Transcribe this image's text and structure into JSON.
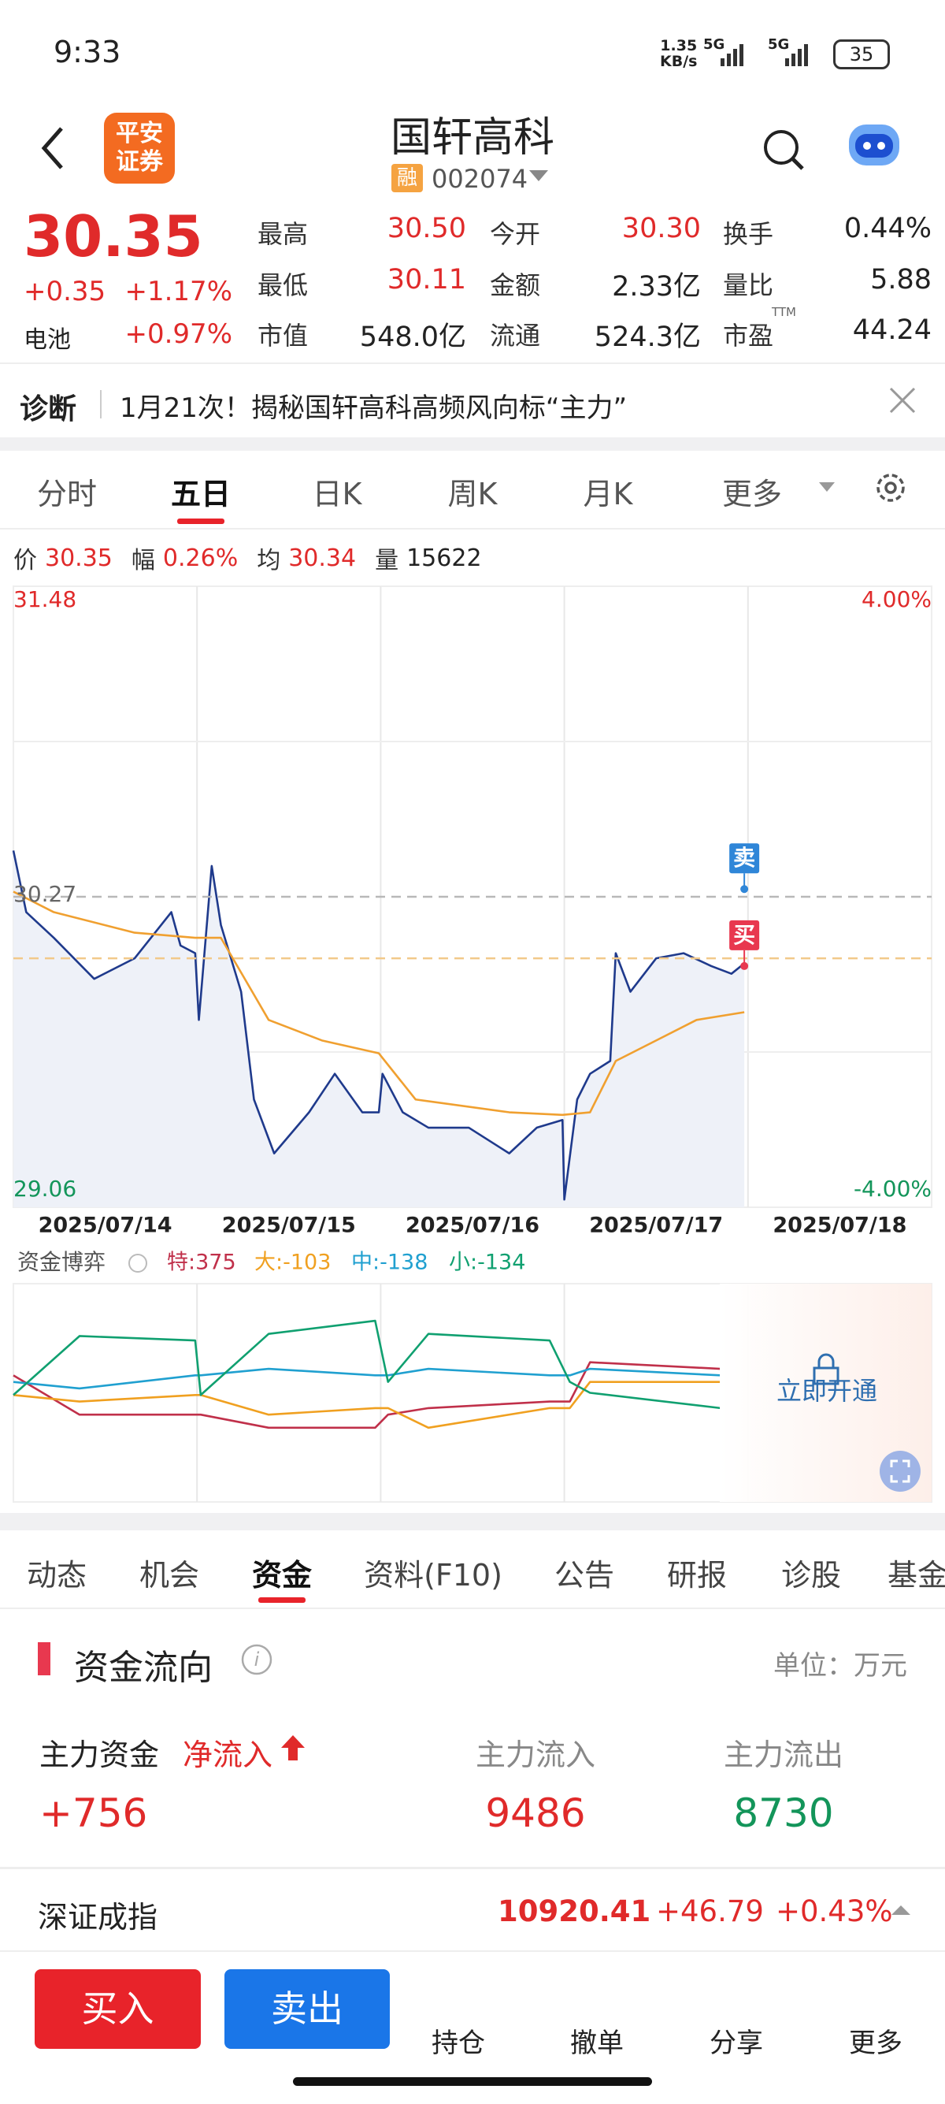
{
  "status_bar": {
    "time": "9:33",
    "speed": "1.35",
    "speed_unit": "KB/s",
    "net1": "5G",
    "net2": "5G",
    "battery": "35"
  },
  "header": {
    "broker_line1": "平安",
    "broker_line2": "证券",
    "title": "国轩高科",
    "tag": "融",
    "code": "002074"
  },
  "quote": {
    "price": "30.35",
    "change": "+0.35",
    "change_pct": "+1.17%",
    "sector": "电池",
    "sector_pct": "+0.97%",
    "fields": [
      {
        "label": "最高",
        "value": "30.50",
        "color": "#e02a2a"
      },
      {
        "label": "今开",
        "value": "30.30",
        "color": "#e02a2a"
      },
      {
        "label": "换手",
        "value": "0.44%",
        "color": "#222"
      },
      {
        "label": "最低",
        "value": "30.11",
        "color": "#e02a2a"
      },
      {
        "label": "金额",
        "value": "2.33亿",
        "color": "#222"
      },
      {
        "label": "量比",
        "value": "5.88",
        "color": "#222"
      },
      {
        "label": "市值",
        "value": "548.0亿",
        "color": "#222"
      },
      {
        "label": "流通",
        "value": "524.3亿",
        "color": "#222"
      },
      {
        "label": "市盈",
        "sup": "TTM",
        "value": "44.24",
        "color": "#222"
      }
    ]
  },
  "notice": {
    "tag": "诊断",
    "text": "1月21次！揭秘国轩高科高频风向标“主力”"
  },
  "chart_tabs": {
    "items": [
      "分时",
      "五日",
      "日K",
      "周K",
      "月K",
      "更多"
    ],
    "active": 1
  },
  "chart_info": [
    {
      "label": "价",
      "value": "30.35"
    },
    {
      "label": "幅",
      "value": "0.26%"
    },
    {
      "label": "均",
      "value": "30.34"
    },
    {
      "label": "量",
      "value": "15622"
    }
  ],
  "chart_data": [
    {
      "type": "line",
      "categories": [
        "2025/07/14",
        "2025/07/15",
        "2025/07/16",
        "2025/07/17",
        "2025/07/18"
      ],
      "xlim": [
        0,
        5
      ],
      "ylim": [
        29.06,
        31.48
      ],
      "yticks": [
        31.48,
        29.06
      ],
      "y2lim": [
        -4,
        4
      ],
      "y2ticks": [
        {
          "value": 4,
          "label": "4.00%"
        },
        {
          "value": -4,
          "label": "-4.00%"
        }
      ],
      "ref_lines": [
        {
          "value": 30.27,
          "label": "30.27",
          "color": "#b8b8b8"
        },
        {
          "value": 30.03,
          "color": "#f2c98a"
        }
      ],
      "series": [
        {
          "color": "#1f3a8c",
          "fill": "#eef1f8",
          "x": [
            0,
            0.07,
            0.22,
            0.44,
            0.66,
            0.86,
            0.91,
            0.99,
            1.01,
            1.08,
            1.13,
            1.24,
            1.31,
            1.42,
            1.61,
            1.75,
            1.9,
            1.99,
            2.01,
            2.12,
            2.26,
            2.48,
            2.7,
            2.85,
            2.99,
            3.0,
            3.07,
            3.14,
            3.25,
            3.28,
            3.36,
            3.5,
            3.65,
            3.8,
            3.91,
            3.98
          ],
          "values": [
            30.45,
            30.21,
            30.11,
            29.95,
            30.03,
            30.21,
            30.08,
            30.05,
            29.79,
            30.39,
            30.16,
            29.9,
            29.48,
            29.27,
            29.43,
            29.58,
            29.43,
            29.43,
            29.58,
            29.43,
            29.37,
            29.37,
            29.27,
            29.37,
            29.4,
            29.09,
            29.48,
            29.58,
            29.63,
            30.05,
            29.9,
            30.03,
            30.05,
            30.0,
            29.97,
            30.01
          ]
        },
        {
          "color": "#f0a030",
          "x": [
            0,
            0.22,
            0.66,
            0.99,
            1.13,
            1.39,
            1.68,
            1.99,
            2.19,
            2.7,
            2.99,
            3.14,
            3.28,
            3.5,
            3.72,
            3.98
          ],
          "values": [
            30.29,
            30.21,
            30.13,
            30.11,
            30.11,
            29.79,
            29.71,
            29.66,
            29.48,
            29.43,
            29.42,
            29.43,
            29.63,
            29.71,
            29.79,
            29.82
          ]
        }
      ],
      "trade_marks": [
        {
          "label": "卖",
          "x": 3.98,
          "value": 30.3,
          "color": "#2f86d8"
        },
        {
          "label": "买",
          "x": 3.98,
          "value": 30.0,
          "color": "#e8384f"
        }
      ]
    },
    {
      "type": "line",
      "title": "资金博弈",
      "lock_text": "立即开通",
      "xlim": [
        0,
        5
      ],
      "ylim": [
        0,
        100
      ],
      "x": [
        0,
        0.36,
        0.99,
        1.02,
        1.39,
        1.97,
        2.04,
        2.26,
        2.92,
        3.03,
        3.14,
        3.85
      ],
      "series": [
        {
          "name": "特:375",
          "color": "#c0304a",
          "values": [
            58,
            40,
            40,
            40,
            34,
            34,
            40,
            43,
            46,
            46,
            64,
            61
          ]
        },
        {
          "name": "大:-103",
          "color": "#f0a020",
          "values": [
            49,
            46,
            49,
            49,
            40,
            43,
            43,
            34,
            43,
            43,
            55,
            55
          ]
        },
        {
          "name": "中:-138",
          "color": "#20a0d0",
          "values": [
            55,
            52,
            58,
            58,
            61,
            58,
            58,
            61,
            58,
            58,
            61,
            58
          ]
        },
        {
          "name": "小:-134",
          "color": "#10a070",
          "values": [
            49,
            76,
            74,
            49,
            77,
            83,
            55,
            77,
            74,
            55,
            50,
            43
          ]
        }
      ]
    }
  ],
  "info_tabs": {
    "items": [
      "动态",
      "机会",
      "资金",
      "资料(F10)",
      "公告",
      "研报",
      "诊股",
      "基金"
    ],
    "active": 2
  },
  "fund_flow": {
    "title": "资金流向",
    "unit": "单位：万元",
    "main_label": "主力资金",
    "net_label": "净流入",
    "net_value": "+756",
    "inflow_label": "主力流入",
    "inflow": "9486",
    "outflow_label": "主力流出",
    "outflow": "8730"
  },
  "index_bar": {
    "name": "深证成指",
    "value": "10920.41",
    "change": "+46.79",
    "pct": "+0.43%"
  },
  "bottom_bar": {
    "buy": "买入",
    "sell": "卖出",
    "items": [
      "持仓",
      "撤单",
      "分享",
      "更多"
    ]
  }
}
